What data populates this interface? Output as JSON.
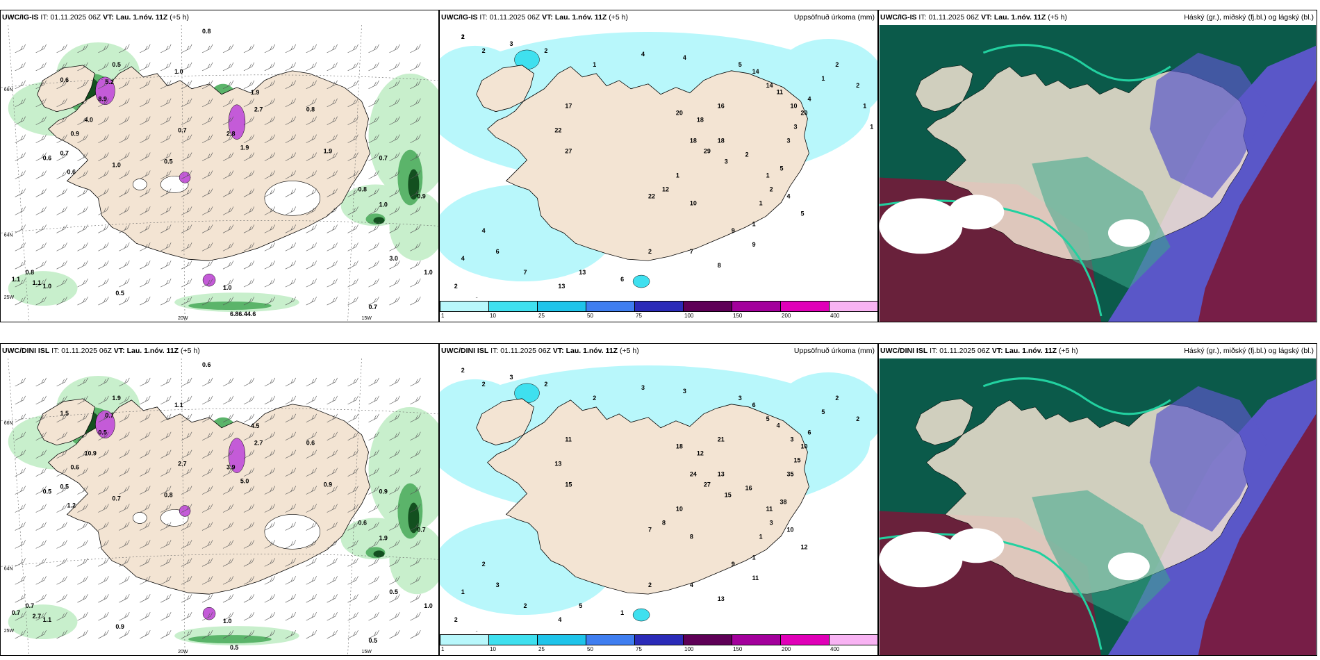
{
  "rows": [
    {
      "model": "UWC/IG-IS",
      "it_label": "IT:",
      "it_value": "01.11.2025 06Z",
      "vt_label": "VT:",
      "vt_value": "Lau. 1.nóv. 11Z",
      "lead": "(+5 h)",
      "wind_labels": [
        "0.8",
        "1.0",
        "0.6",
        "0.5",
        "0.9",
        "0.6",
        "0.7",
        "0.8",
        "0.6",
        "1.0",
        "0.5",
        "0.7",
        "1.1",
        "1.0",
        "1.9",
        "0.8",
        "0.7",
        "1.0",
        "3.0",
        "0.9",
        "1.0",
        "0.5",
        "0.8",
        "1.1",
        "1.0",
        "0.7",
        "6.86.44.6",
        "5.2",
        "8.9",
        "4.0",
        "1.9",
        "2.8",
        "1.9",
        "2.7"
      ],
      "precip_labels": [
        "2",
        "2",
        "3",
        "2",
        "1",
        "4",
        "4",
        "5",
        "14",
        "14",
        "11",
        "10",
        "20",
        "17",
        "22",
        "27",
        "20",
        "18",
        "16",
        "18",
        "29",
        "18",
        "3",
        "2",
        "1",
        "4",
        "5",
        "1",
        "12",
        "22",
        "10",
        "9",
        "9",
        "8",
        "7",
        "2",
        "6",
        "13",
        "13",
        "7",
        "6",
        "4",
        "4",
        "2",
        "3",
        "1",
        "1",
        "2",
        "5",
        "3",
        "3",
        "4",
        "1",
        "2",
        "2",
        "1",
        "1",
        "1"
      ]
    },
    {
      "model": "UWC/DINI ISL",
      "it_label": "IT:",
      "it_value": "01.11.2025 06Z",
      "vt_label": "VT:",
      "vt_value": "Lau. 1.nóv. 11Z",
      "lead": "(+5 h)",
      "wind_labels": [
        "0.6",
        "1.1",
        "1.5",
        "1.9",
        "0.6",
        "1.2",
        "2.7",
        "0.6",
        "0.5",
        "0.7",
        "0.8",
        "0.5",
        "0.7",
        "1.1",
        "0.9",
        "0.6",
        "0.9",
        "1.0",
        "0.5",
        "0.7",
        "1.0",
        "0.9",
        "0.7",
        "2.7",
        "1.9",
        "0.5",
        "0.5",
        "0.7",
        "0.5",
        "10.9",
        "5.0",
        "3.9",
        "4.5",
        "2.7"
      ],
      "precip_labels": [
        "2",
        "2",
        "3",
        "2",
        "2",
        "3",
        "3",
        "3",
        "6",
        "5",
        "4",
        "3",
        "10",
        "11",
        "13",
        "15",
        "18",
        "12",
        "21",
        "24",
        "27",
        "13",
        "15",
        "16",
        "11",
        "10",
        "12",
        "10",
        "8",
        "7",
        "8",
        "9",
        "11",
        "13",
        "4",
        "2",
        "1",
        "5",
        "4",
        "2",
        "3",
        "2",
        "1",
        "2",
        "2",
        "1",
        "1",
        "3",
        "38",
        "35",
        "15",
        "6",
        "5",
        "2",
        "2"
      ]
    }
  ],
  "precip_title": "Uppsöfnuð úrkoma (mm)",
  "cloud_title": "Háský (gr.), miðský (fj.bl.) og lágský (bl.)",
  "colorbar": {
    "ticks": [
      "1",
      "10",
      "25",
      "50",
      "75",
      "100",
      "150",
      "200",
      "400"
    ],
    "colors": [
      "#b8f7fb",
      "#3fe0ef",
      "#1fc4ea",
      "#3f7ef0",
      "#2b2bb8",
      "#5e0057",
      "#a3009c",
      "#e000b8",
      "#f8b3f3"
    ]
  },
  "axis_labels": {
    "lat_top": "66N",
    "lat_mid": "64N",
    "lon_left": "25W",
    "lon_mid": "20W",
    "lon_right": "15W"
  },
  "colors": {
    "land": "#f3e4d3",
    "precip_light": "#b8f7fb",
    "wind_light": "#c8efcc",
    "wind_mid": "#5bb46a",
    "wind_dark": "#13501f",
    "cloud_high": "#0b5a4a",
    "cloud_mid": "#5a57c8",
    "cloud_low": "#7a1838",
    "cloud_edge": "#22d1a0"
  }
}
